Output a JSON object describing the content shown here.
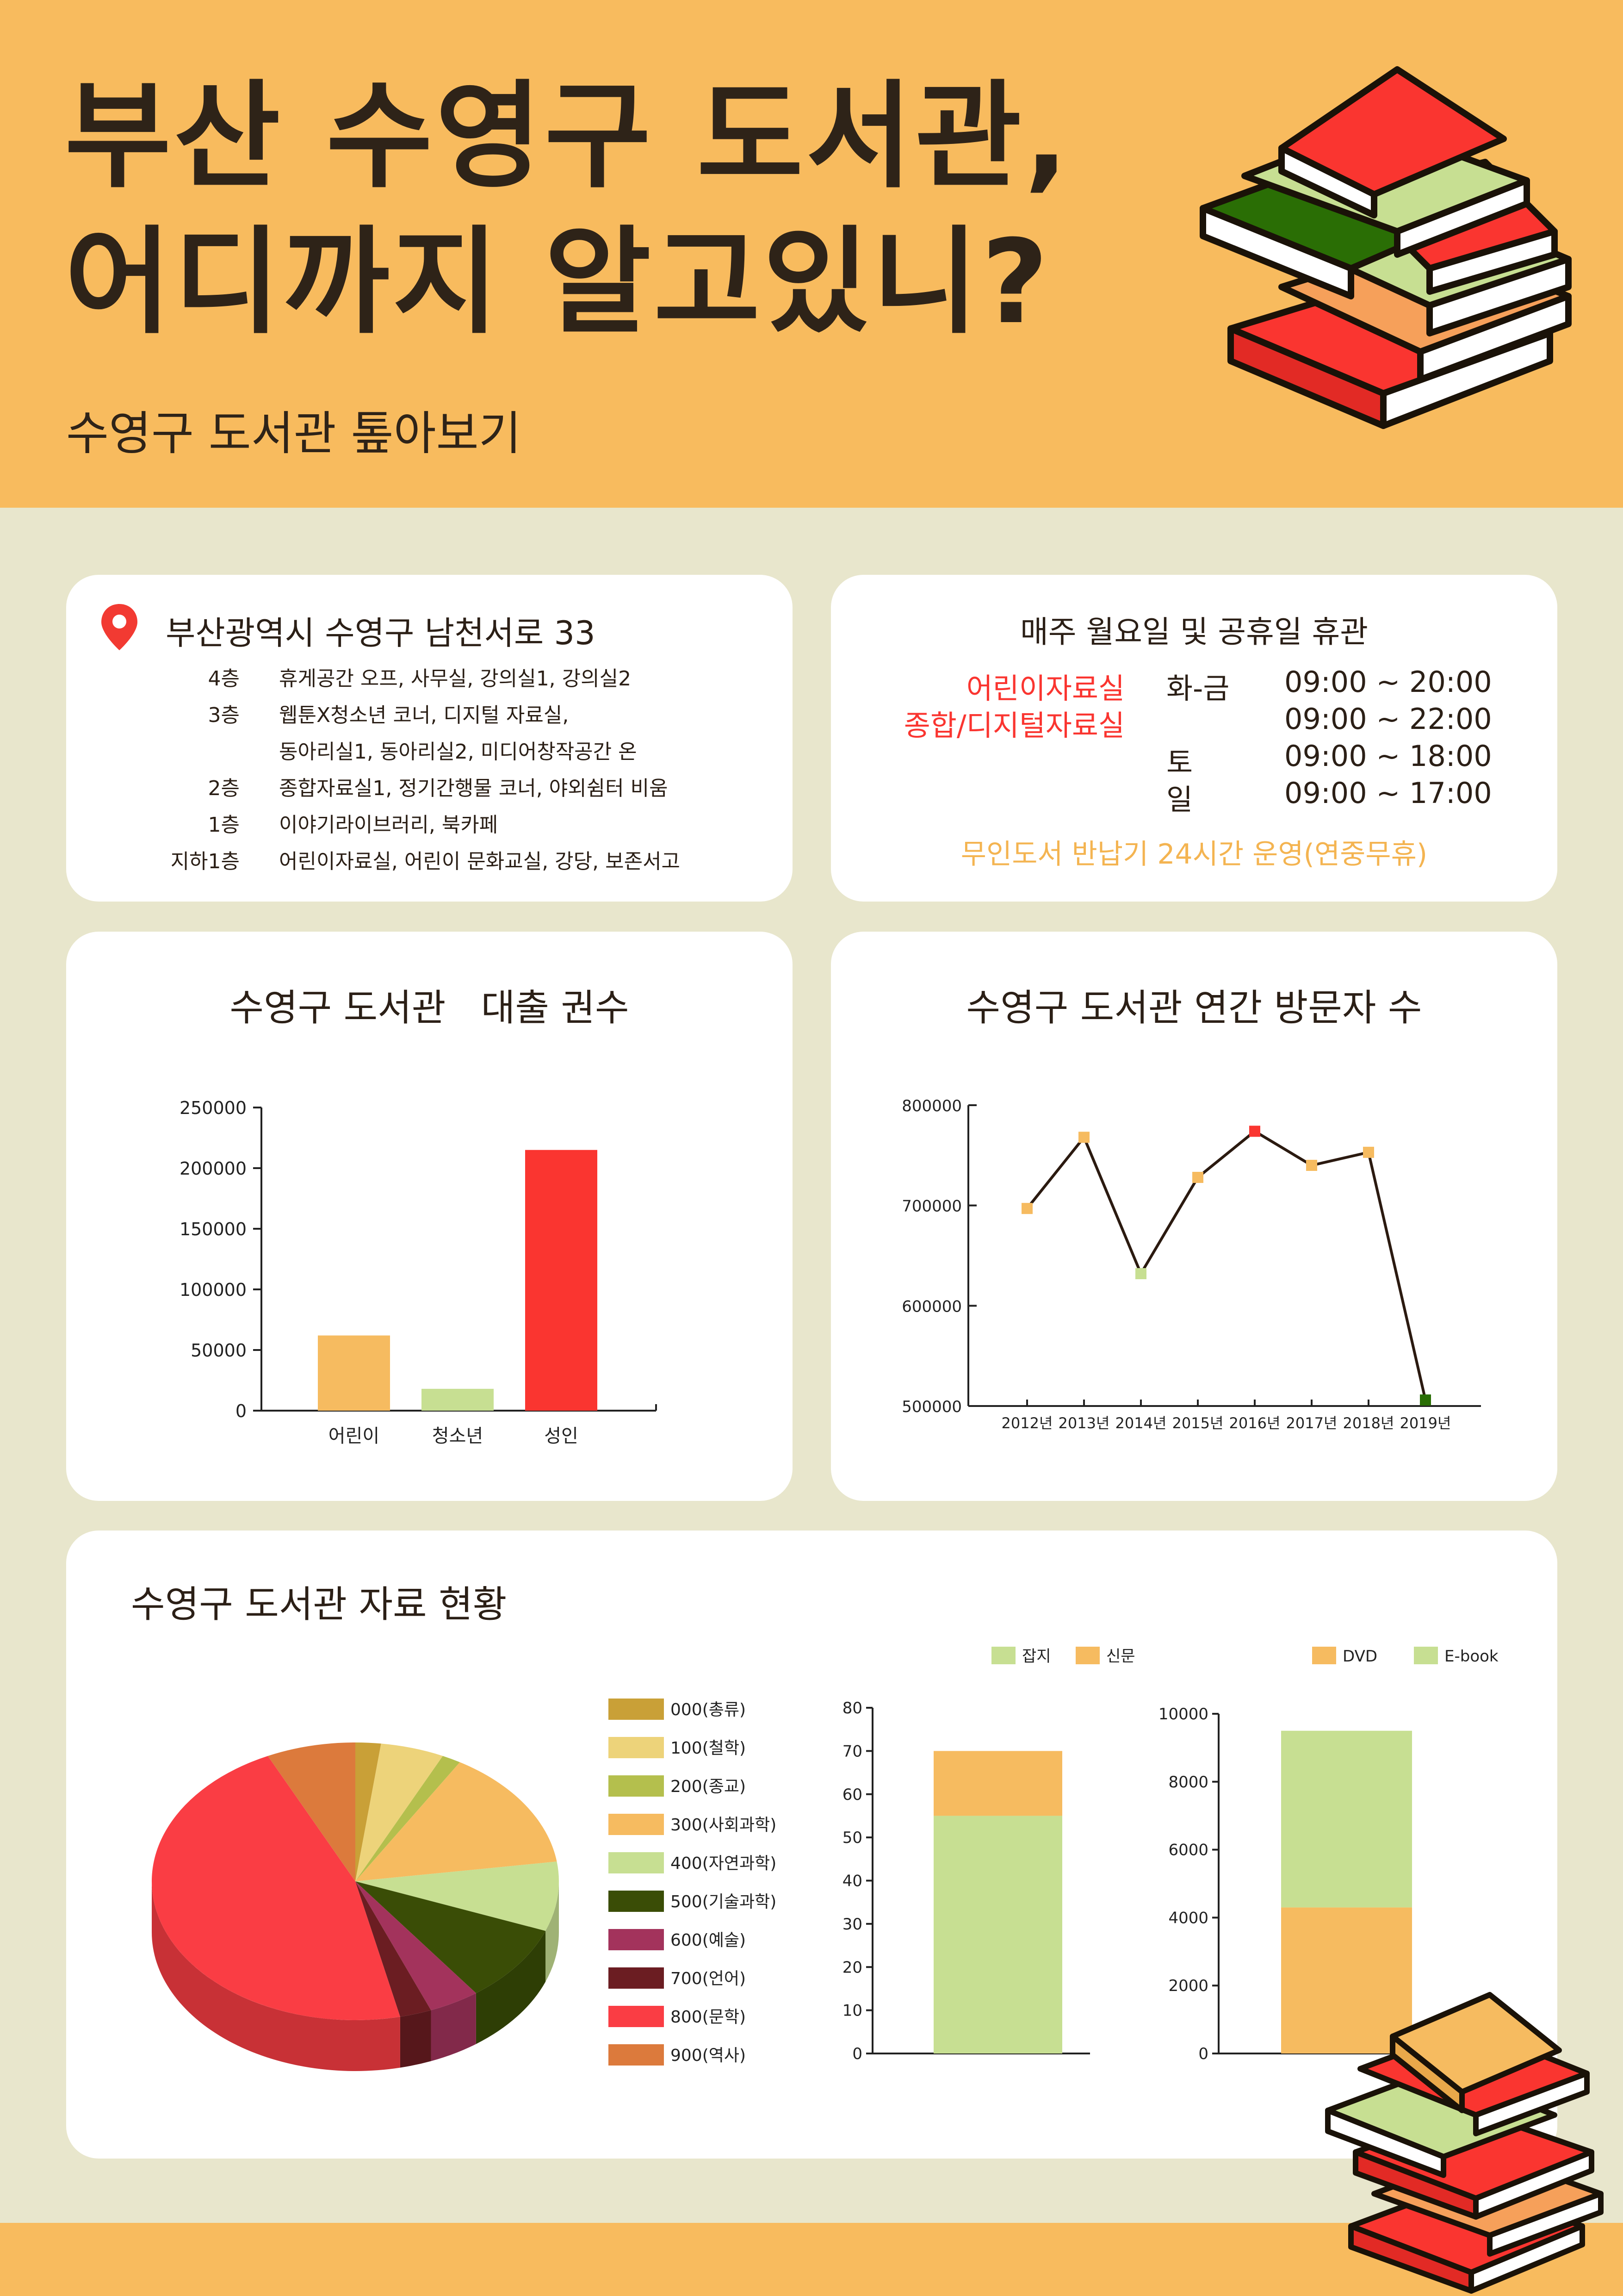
{
  "header": {
    "title_line1": "부산 수영구 도서관,",
    "title_line2": "어디까지 알고있니?",
    "subtitle": "수영구 도서관 톺아보기"
  },
  "address_card": {
    "address": "부산광역시 수영구 남천서로 33",
    "floors": [
      {
        "floor": "4층",
        "desc": "휴게공간 오프, 사무실, 강의실1, 강의실2"
      },
      {
        "floor": "3층",
        "desc": "웹툰X청소년 코너, 디지털 자료실,"
      },
      {
        "floor": "",
        "desc": "동아리실1, 동아리실2, 미디어창작공간 온"
      },
      {
        "floor": "2층",
        "desc": "종합자료실1, 정기간행물 코너, 야외쉼터 비움"
      },
      {
        "floor": "1층",
        "desc": "이야기라이브러리, 북카페"
      },
      {
        "floor": "지하1층",
        "desc": "어린이자료실, 어린이 문화교실, 강당, 보존서고"
      }
    ]
  },
  "hours_card": {
    "closed_notice": "매주 월요일 및 공휴일 휴관",
    "room1": "어린이자료실",
    "room2": "종합/디지털자료실",
    "rows": [
      {
        "day": "화-금",
        "time": "09:00 ~ 20:00"
      },
      {
        "day": "",
        "time": "09:00 ~ 22:00"
      },
      {
        "day": "토",
        "time": "09:00 ~ 18:00"
      },
      {
        "day": "일",
        "time": "09:00 ~ 17:00"
      }
    ],
    "unmanned_return": "무인도서 반납기 24시간 운영(연중무휴)"
  },
  "colors": {
    "header_bg": "#f8bb5e",
    "page_bg": "#e8e6cc",
    "red": "#fa3530",
    "orange": "#f6bb60",
    "light_green": "#c7df92",
    "dark_green": "#2a6e05"
  },
  "chart_data": [
    {
      "type": "bar",
      "title": "수영구 도서관   대출 권수",
      "categories": [
        "어린이",
        "청소년",
        "성인"
      ],
      "values": [
        62000,
        18000,
        215000
      ],
      "colors": [
        "#f6bb60",
        "#c7df92",
        "#fa3530"
      ],
      "ylim": [
        0,
        250000
      ],
      "yticks": [
        "0",
        "50000",
        "100000",
        "150000",
        "200000",
        "250000"
      ]
    },
    {
      "type": "line",
      "title": "수영구 도서관 연간 방문자 수",
      "x": [
        "2012년",
        "2013년",
        "2014년",
        "2015년",
        "2016년",
        "2017년",
        "2018년",
        "2019년"
      ],
      "values": [
        697000,
        768000,
        632000,
        728000,
        774000,
        740000,
        753000,
        506000
      ],
      "point_colors": [
        "#f6bb60",
        "#f6bb60",
        "#c7df92",
        "#f6bb60",
        "#fa3530",
        "#f6bb60",
        "#f6bb60",
        "#2a6e05"
      ],
      "ylim": [
        500000,
        800000
      ],
      "yticks": [
        "500000",
        "600000",
        "700000",
        "800000"
      ]
    },
    {
      "type": "pie",
      "title": "수영구 도서관 자료 현황",
      "legend_position": "right",
      "labels": [
        "000(총류)",
        "100(철학)",
        "200(종교)",
        "300(사회과학)",
        "400(자연과학)",
        "500(기술과학)",
        "600(예술)",
        "700(언어)",
        "800(문학)",
        "900(역사)"
      ],
      "values": [
        2,
        5,
        1.5,
        14,
        8,
        9,
        4,
        2.5,
        46,
        7
      ],
      "colors": [
        "#c9a037",
        "#edd37a",
        "#b4bf4d",
        "#f6bb60",
        "#c7df92",
        "#3a4d06",
        "#a3335c",
        "#6b1d22",
        "#fa3d44",
        "#dc7a3c"
      ]
    },
    {
      "type": "bar",
      "stacked": true,
      "legend": [
        "잡지",
        "신문"
      ],
      "series": [
        {
          "name": "잡지",
          "values": [
            55
          ],
          "color": "#c7df92"
        },
        {
          "name": "신문",
          "values": [
            15
          ],
          "color": "#f6bb60"
        }
      ],
      "ylim": [
        0,
        80
      ],
      "yticks": [
        "0",
        "10",
        "20",
        "30",
        "40",
        "50",
        "60",
        "70",
        "80"
      ]
    },
    {
      "type": "bar",
      "stacked": true,
      "legend": [
        "DVD",
        "E-book"
      ],
      "series": [
        {
          "name": "DVD",
          "values": [
            4300
          ],
          "color": "#f6bb60"
        },
        {
          "name": "E-book",
          "values": [
            5200
          ],
          "color": "#c7df92"
        }
      ],
      "ylim": [
        0,
        10000
      ],
      "yticks": [
        "0",
        "2000",
        "4000",
        "6000",
        "8000",
        "10000"
      ]
    }
  ]
}
